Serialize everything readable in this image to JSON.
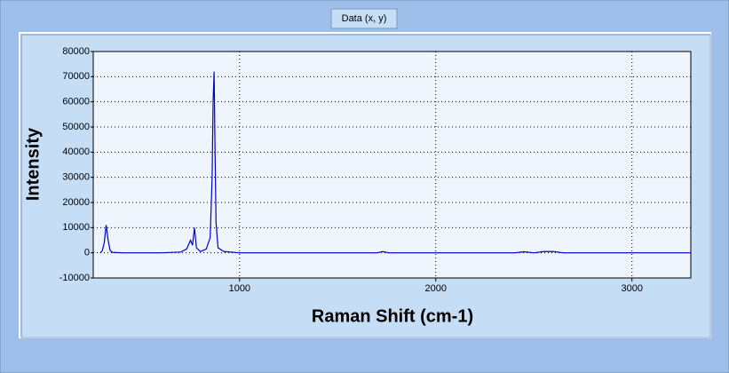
{
  "chart_data": {
    "type": "line",
    "x_label": "Raman Shift (cm-1)",
    "y_label": "Intensity",
    "x": [
      290,
      300,
      310,
      320,
      330,
      340,
      350,
      400,
      500,
      600,
      700,
      730,
      750,
      760,
      770,
      780,
      800,
      830,
      850,
      860,
      865,
      870,
      875,
      880,
      890,
      920,
      1000,
      1700,
      1730,
      1760,
      2400,
      2450,
      2500,
      2550,
      2600,
      2650,
      3300
    ],
    "series": [
      {
        "name": "Data (x, y)",
        "color": "#0000cc",
        "values": [
          0,
          800,
          4000,
          11000,
          5000,
          1000,
          200,
          0,
          0,
          0,
          300,
          1500,
          5000,
          3000,
          10000,
          2000,
          500,
          1500,
          6000,
          30000,
          60000,
          72000,
          40000,
          12000,
          2000,
          500,
          0,
          0,
          500,
          0,
          0,
          400,
          0,
          500,
          500,
          0,
          0
        ]
      }
    ],
    "xlim": [
      254,
      3300
    ],
    "xticks": [
      1000,
      2000,
      3000
    ],
    "ylim": [
      -10000,
      80000
    ],
    "yticks": [
      -10000,
      0,
      10000,
      20000,
      30000,
      40000,
      50000,
      60000,
      70000,
      80000
    ],
    "grid": true
  }
}
